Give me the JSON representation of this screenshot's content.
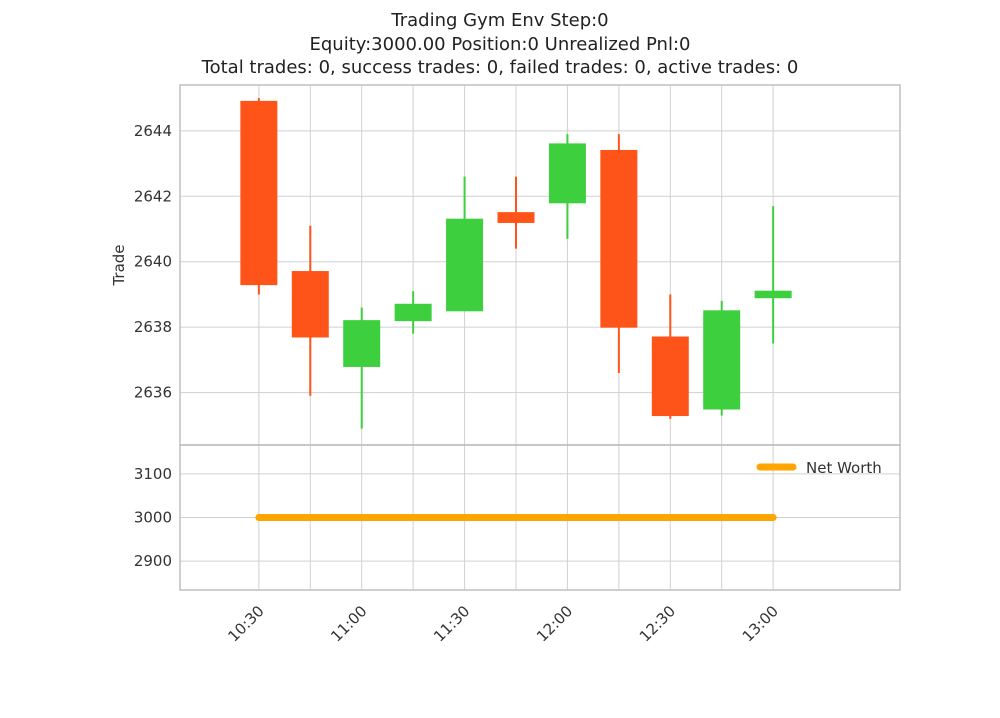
{
  "header": {
    "line1": "Trading Gym Env Step:0",
    "line2": "Equity:3000.00 Position:0 Unrealized Pnl:0",
    "line3": "Total trades: 0, success trades: 0, failed trades: 0, active trades: 0"
  },
  "colors": {
    "up": "#3ecf3e",
    "down": "#ff5419",
    "net_worth": "#ffa500",
    "grid": "#d0d0d0",
    "frame": "#bfbfbf"
  },
  "chart_data": [
    {
      "type": "candlestick",
      "ylabel": "Trade",
      "ylim": [
        2634.4,
        2645.4
      ],
      "yticks": [
        2636,
        2638,
        2640,
        2642,
        2644
      ],
      "xlim": [
        "10:07",
        "13:37"
      ],
      "x": [
        "10:30",
        "10:45",
        "11:00",
        "11:15",
        "11:30",
        "11:45",
        "12:00",
        "12:15",
        "12:30",
        "12:45",
        "13:00"
      ],
      "candles": [
        {
          "x": "10:30",
          "open": 2644.9,
          "high": 2645.0,
          "low": 2639.0,
          "close": 2639.3
        },
        {
          "x": "10:45",
          "open": 2639.7,
          "high": 2641.1,
          "low": 2635.9,
          "close": 2637.7
        },
        {
          "x": "11:00",
          "open": 2636.8,
          "high": 2638.6,
          "low": 2634.9,
          "close": 2638.2
        },
        {
          "x": "11:15",
          "open": 2638.2,
          "high": 2639.1,
          "low": 2637.8,
          "close": 2638.7
        },
        {
          "x": "11:30",
          "open": 2638.5,
          "high": 2642.6,
          "low": 2638.5,
          "close": 2641.3
        },
        {
          "x": "11:45",
          "open": 2641.5,
          "high": 2642.6,
          "low": 2640.4,
          "close": 2641.2
        },
        {
          "x": "12:00",
          "open": 2641.8,
          "high": 2643.9,
          "low": 2640.7,
          "close": 2643.6
        },
        {
          "x": "12:15",
          "open": 2643.4,
          "high": 2643.9,
          "low": 2636.6,
          "close": 2638.0
        },
        {
          "x": "12:30",
          "open": 2637.7,
          "high": 2639.0,
          "low": 2635.2,
          "close": 2635.3
        },
        {
          "x": "12:45",
          "open": 2635.5,
          "high": 2638.8,
          "low": 2635.3,
          "close": 2638.5
        },
        {
          "x": "13:00",
          "open": 2638.9,
          "high": 2641.7,
          "low": 2637.5,
          "close": 2639.1
        }
      ]
    },
    {
      "type": "line",
      "ylim": [
        2834,
        3166
      ],
      "yticks": [
        2900,
        3000,
        3100
      ],
      "xlabels": [
        "10:30",
        "11:00",
        "11:30",
        "12:00",
        "12:30",
        "13:00"
      ],
      "legend": "upper-right",
      "series": [
        {
          "name": "Net Worth",
          "x": [
            "10:30",
            "13:00"
          ],
          "values": [
            3000,
            3000
          ]
        }
      ]
    }
  ]
}
